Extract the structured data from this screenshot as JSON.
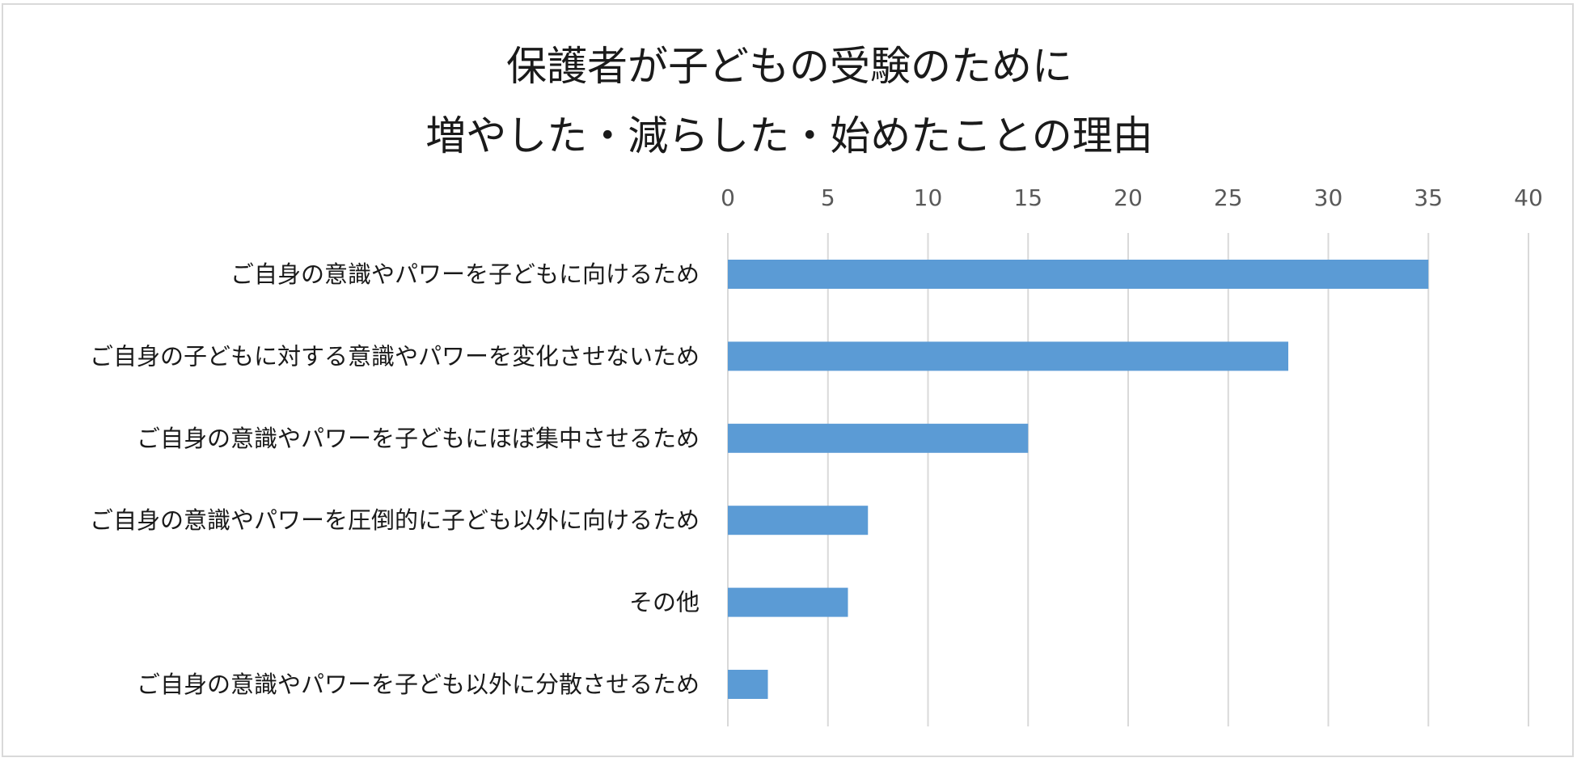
{
  "chart_data": {
    "type": "bar",
    "orientation": "horizontal",
    "title_lines": [
      "保護者が子どもの受験のために",
      "増やした・減らした・始めたことの理由"
    ],
    "categories": [
      "ご自身の意識やパワーを子どもに向けるため",
      "ご自身の子どもに対する意識やパワーを変化させないため",
      "ご自身の意識やパワーを子どもにほぼ集中させるため",
      "ご自身の意識やパワーを圧倒的に子ども以外に向けるため",
      "その他",
      "ご自身の意識やパワーを子ども以外に分散させるため"
    ],
    "values": [
      35,
      28,
      15,
      7,
      6,
      2
    ],
    "xlim": [
      0,
      40
    ],
    "xticks": [
      0,
      5,
      10,
      15,
      20,
      25,
      30,
      35,
      40
    ],
    "x_axis_position": "top",
    "grid": true,
    "bar_color": "#5b9bd5",
    "grid_color": "#d9d9d9"
  }
}
